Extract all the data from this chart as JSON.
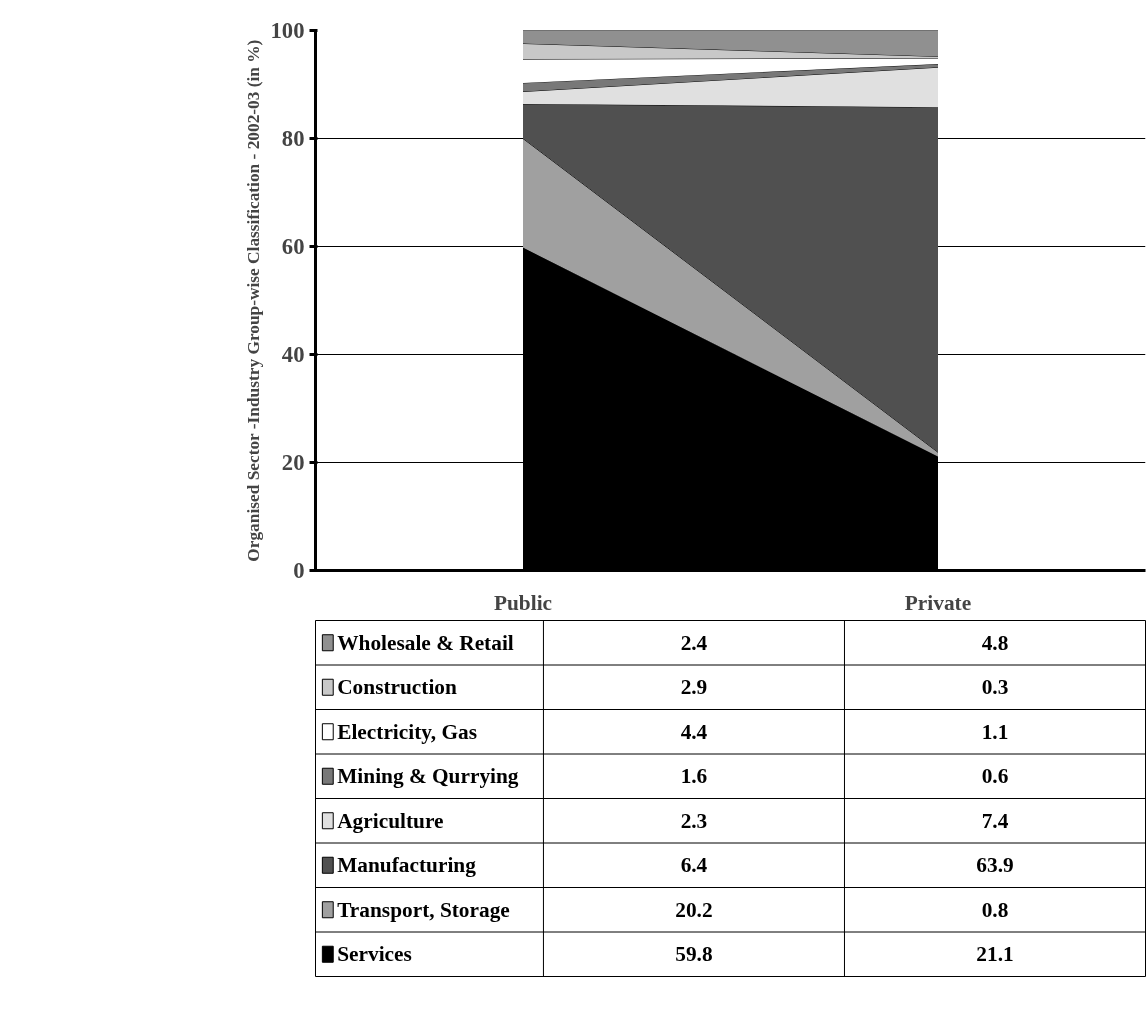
{
  "chart_data": {
    "type": "area",
    "stacked": true,
    "ylabel": "Organised Sector -Industry Group-wise Classification - 2002-03 (in %)",
    "categories": [
      "Public",
      "Private"
    ],
    "series": [
      {
        "name": "Services",
        "color": "#000000",
        "values": [
          59.8,
          21.1
        ]
      },
      {
        "name": "Transport, Storage",
        "color": "#a0a0a0",
        "values": [
          20.2,
          0.8
        ]
      },
      {
        "name": "Manufacturing",
        "color": "#505050",
        "values": [
          6.4,
          63.9
        ]
      },
      {
        "name": "Agriculture",
        "color": "#e0e0e0",
        "values": [
          2.3,
          7.4
        ]
      },
      {
        "name": "Mining & Qurrying",
        "color": "#787878",
        "values": [
          1.6,
          0.6
        ]
      },
      {
        "name": "Electricity, Gas",
        "color": "#ffffff",
        "values": [
          4.4,
          1.1
        ]
      },
      {
        "name": "Construction",
        "color": "#c8c8c8",
        "values": [
          2.9,
          0.3
        ]
      },
      {
        "name": "Wholesale & Retail",
        "color": "#909090",
        "values": [
          2.4,
          4.8
        ]
      }
    ],
    "ylim": [
      0,
      100
    ],
    "yticks": [
      0,
      20,
      40,
      60,
      80,
      100
    ],
    "grid": "y",
    "legend": "bottom",
    "data_labels": true
  }
}
